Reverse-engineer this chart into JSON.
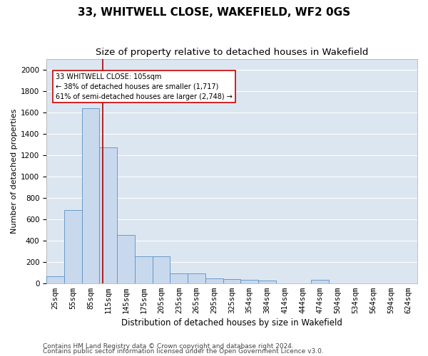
{
  "title": "33, WHITWELL CLOSE, WAKEFIELD, WF2 0GS",
  "subtitle": "Size of property relative to detached houses in Wakefield",
  "xlabel": "Distribution of detached houses by size in Wakefield",
  "ylabel": "Number of detached properties",
  "categories": [
    "25sqm",
    "55sqm",
    "85sqm",
    "115sqm",
    "145sqm",
    "175sqm",
    "205sqm",
    "235sqm",
    "265sqm",
    "295sqm",
    "325sqm",
    "354sqm",
    "384sqm",
    "414sqm",
    "444sqm",
    "474sqm",
    "504sqm",
    "534sqm",
    "564sqm",
    "594sqm",
    "624sqm"
  ],
  "values": [
    65,
    685,
    1640,
    1275,
    450,
    250,
    250,
    90,
    90,
    45,
    40,
    30,
    25,
    0,
    0,
    30,
    0,
    0,
    0,
    0,
    0
  ],
  "bar_color": "#c9d9ed",
  "bar_edge_color": "#5a8fc2",
  "vline_color": "#aa0000",
  "vline_x": 2.7,
  "annotation_text": "33 WHITWELL CLOSE: 105sqm\n← 38% of detached houses are smaller (1,717)\n61% of semi-detached houses are larger (2,748) →",
  "annotation_box_facecolor": "#ffffff",
  "annotation_box_edgecolor": "#cc0000",
  "footer_line1": "Contains HM Land Registry data © Crown copyright and database right 2024.",
  "footer_line2": "Contains public sector information licensed under the Open Government Licence v3.0.",
  "ylim": [
    0,
    2100
  ],
  "axes_facecolor": "#dce6f1",
  "fig_facecolor": "#ffffff",
  "grid_color": "#ffffff",
  "title_fontsize": 11,
  "subtitle_fontsize": 9.5,
  "axis_label_fontsize": 8.5,
  "ylabel_fontsize": 8,
  "tick_fontsize": 7.5,
  "annotation_fontsize": 7,
  "footer_fontsize": 6.5
}
